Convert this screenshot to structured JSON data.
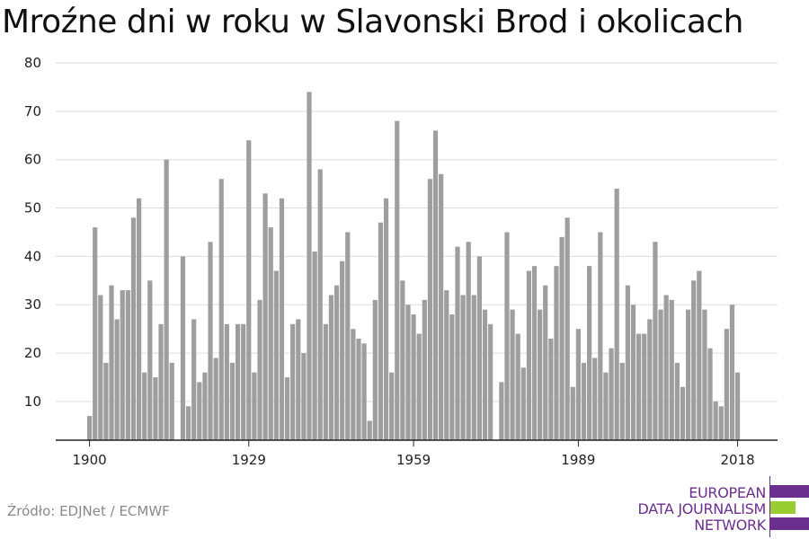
{
  "title": "Mroźne dni w roku w Slavonski Brod i okolicach",
  "source": "Źródło: EDJNet / ECMWF",
  "logo": {
    "lines": [
      "EUROPEAN",
      "DATA JOURNALISM",
      "NETWORK"
    ],
    "colors": {
      "text": "#6b2f8f",
      "bar1": "#6b2f8f",
      "bar2": "#9acd32",
      "bar3": "#6b2f8f"
    }
  },
  "colors": {
    "bar": "#9e9e9e",
    "grid": "#dddddd",
    "axis": "#222222"
  },
  "chart_data": {
    "type": "bar",
    "title": "Mroźne dni w roku w Slavonski Brod i okolicach",
    "xlabel": "",
    "ylabel": "",
    "ylim": [
      2,
      80
    ],
    "yticks": [
      10,
      20,
      30,
      40,
      50,
      60,
      70,
      80
    ],
    "xticks": [
      1900,
      1929,
      1959,
      1989,
      2018
    ],
    "grid": true,
    "legend": "none",
    "x": [
      1900,
      1901,
      1902,
      1903,
      1904,
      1905,
      1906,
      1907,
      1908,
      1909,
      1910,
      1911,
      1912,
      1913,
      1914,
      1915,
      1916,
      1917,
      1918,
      1919,
      1920,
      1921,
      1922,
      1923,
      1924,
      1925,
      1926,
      1927,
      1928,
      1929,
      1930,
      1931,
      1932,
      1933,
      1934,
      1935,
      1936,
      1937,
      1938,
      1939,
      1940,
      1941,
      1942,
      1943,
      1944,
      1945,
      1946,
      1947,
      1948,
      1949,
      1950,
      1951,
      1952,
      1953,
      1954,
      1955,
      1956,
      1957,
      1958,
      1959,
      1960,
      1961,
      1962,
      1963,
      1964,
      1965,
      1966,
      1967,
      1968,
      1969,
      1970,
      1971,
      1972,
      1973,
      1974,
      1975,
      1976,
      1977,
      1978,
      1979,
      1980,
      1981,
      1982,
      1983,
      1984,
      1985,
      1986,
      1987,
      1988,
      1989,
      1990,
      1991,
      1992,
      1993,
      1994,
      1995,
      1996,
      1997,
      1998,
      1999,
      2000,
      2001,
      2002,
      2003,
      2004,
      2005,
      2006,
      2007,
      2008,
      2009,
      2010,
      2011,
      2012,
      2013,
      2014,
      2015,
      2016,
      2017,
      2018
    ],
    "values": [
      7,
      46,
      32,
      18,
      34,
      27,
      33,
      33,
      48,
      52,
      16,
      35,
      15,
      26,
      60,
      18,
      null,
      40,
      9,
      27,
      14,
      16,
      43,
      19,
      56,
      26,
      18,
      26,
      26,
      64,
      16,
      31,
      53,
      46,
      37,
      52,
      15,
      26,
      27,
      20,
      74,
      41,
      58,
      26,
      32,
      34,
      39,
      45,
      25,
      23,
      22,
      6,
      31,
      47,
      52,
      16,
      68,
      35,
      30,
      28,
      24,
      31,
      56,
      66,
      57,
      33,
      28,
      42,
      32,
      43,
      32,
      40,
      29,
      26,
      null,
      14,
      45,
      29,
      24,
      17,
      37,
      38,
      29,
      34,
      23,
      38,
      44,
      48,
      13,
      25,
      18,
      38,
      19,
      45,
      16,
      21,
      54,
      18,
      34,
      30,
      24,
      24,
      27,
      43,
      29,
      32,
      31,
      18,
      13,
      29,
      35,
      37,
      29,
      21,
      10,
      9,
      25,
      30,
      16
    ]
  }
}
